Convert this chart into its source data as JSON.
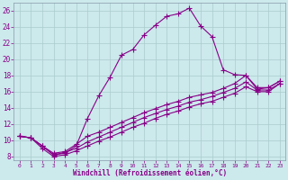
{
  "xlabel": "Windchill (Refroidissement éolien,°C)",
  "bg_color": "#cce9ec",
  "line_color": "#880088",
  "grid_color": "#aacccc",
  "xlim": [
    -0.5,
    23.5
  ],
  "ylim": [
    7.5,
    27.0
  ],
  "yticks": [
    8,
    10,
    12,
    14,
    16,
    18,
    20,
    22,
    24,
    26
  ],
  "xticks": [
    0,
    1,
    2,
    3,
    4,
    5,
    6,
    7,
    8,
    9,
    10,
    11,
    12,
    13,
    14,
    15,
    16,
    17,
    18,
    19,
    20,
    21,
    22,
    23
  ],
  "curve1_x": [
    0,
    1,
    2,
    3,
    4,
    5,
    6,
    7,
    8,
    9,
    10,
    11,
    12,
    13,
    14,
    15,
    16,
    17,
    18,
    19,
    20,
    21,
    22,
    23
  ],
  "curve1_y": [
    10.5,
    10.3,
    9.3,
    8.2,
    8.4,
    9.3,
    12.7,
    15.5,
    17.8,
    20.5,
    21.2,
    23.0,
    24.2,
    25.3,
    25.6,
    26.3,
    24.1,
    22.8,
    18.7,
    18.1,
    18.0,
    16.3,
    16.5,
    17.3
  ],
  "curve2_x": [
    0,
    1,
    2,
    3,
    4,
    5,
    6,
    7,
    8,
    9,
    10,
    11,
    12,
    13,
    14,
    15,
    16,
    17,
    18,
    19,
    20,
    21,
    22,
    23
  ],
  "curve2_y": [
    10.5,
    10.3,
    9.3,
    8.4,
    8.6,
    9.5,
    10.5,
    11.0,
    11.6,
    12.2,
    12.8,
    13.4,
    13.9,
    14.4,
    14.8,
    15.3,
    15.6,
    15.9,
    16.4,
    17.0,
    18.0,
    16.5,
    16.5,
    17.3
  ],
  "curve3_x": [
    0,
    1,
    2,
    3,
    4,
    5,
    6,
    7,
    8,
    9,
    10,
    11,
    12,
    13,
    14,
    15,
    16,
    17,
    18,
    19,
    20,
    21,
    22,
    23
  ],
  "curve3_y": [
    10.5,
    10.3,
    9.3,
    8.2,
    8.5,
    9.0,
    9.8,
    10.4,
    11.0,
    11.6,
    12.2,
    12.8,
    13.3,
    13.8,
    14.2,
    14.7,
    15.0,
    15.4,
    15.9,
    16.4,
    17.2,
    16.2,
    16.2,
    17.0
  ],
  "curve4_x": [
    0,
    1,
    2,
    3,
    4,
    5,
    6,
    7,
    8,
    9,
    10,
    11,
    12,
    13,
    14,
    15,
    16,
    17,
    18,
    19,
    20,
    21,
    22,
    23
  ],
  "curve4_y": [
    10.5,
    10.3,
    9.0,
    8.0,
    8.2,
    8.7,
    9.3,
    9.9,
    10.4,
    11.0,
    11.6,
    12.1,
    12.7,
    13.2,
    13.6,
    14.1,
    14.5,
    14.8,
    15.3,
    15.8,
    16.6,
    16.0,
    16.0,
    17.0
  ]
}
